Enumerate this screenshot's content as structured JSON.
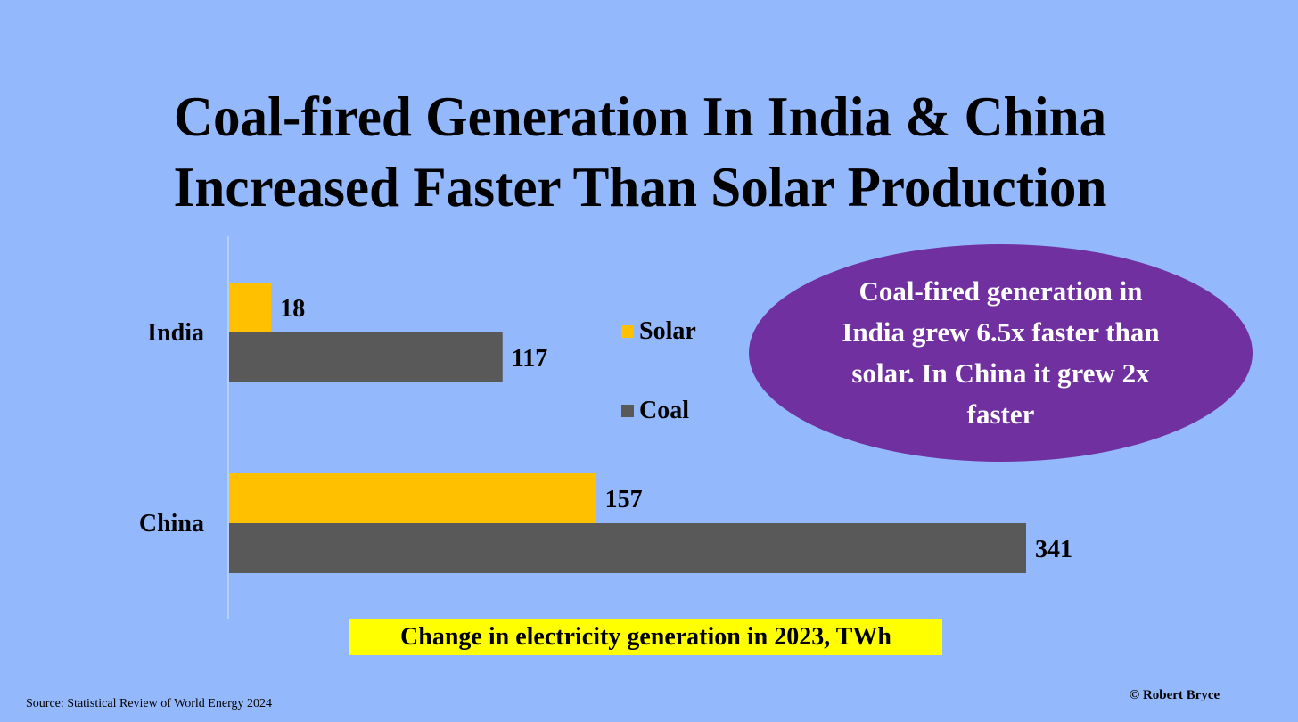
{
  "colors": {
    "background": "#94b8fc",
    "solar": "#ffc000",
    "coal": "#595959",
    "callout": "#7030a0",
    "caption_highlight": "#ffff00"
  },
  "chart_data": {
    "type": "bar",
    "orientation": "horizontal",
    "title": "Coal-fired Generation In India & China Increased Faster Than Solar Production",
    "title_lines": [
      "Coal-fired Generation In India & China",
      "Increased Faster Than Solar Production"
    ],
    "categories": [
      "India",
      "China"
    ],
    "series": [
      {
        "name": "Solar",
        "color": "#ffc000",
        "values": [
          18,
          157
        ]
      },
      {
        "name": "Coal",
        "color": "#595959",
        "values": [
          117,
          341
        ]
      }
    ],
    "xlabel": "Change in electricity generation in 2023, TWh",
    "ylabel": "",
    "xlim": [
      0,
      341
    ],
    "grid": false,
    "data_labels": true,
    "legend_position": "center-right",
    "annotation": "Coal-fired generation in India grew 6.5x faster than solar. In China it grew 2x faster"
  },
  "legend": [
    {
      "label": "Solar",
      "color": "#ffc000"
    },
    {
      "label": "Coal",
      "color": "#595959"
    }
  ],
  "callout": {
    "text": "Coal-fired generation in India grew 6.5x faster than solar. In China it grew 2x faster"
  },
  "caption": "Change in electricity generation in 2023, TWh",
  "source": "Source: Statistical Review of World Energy  2024",
  "credit": "© Robert Bryce"
}
